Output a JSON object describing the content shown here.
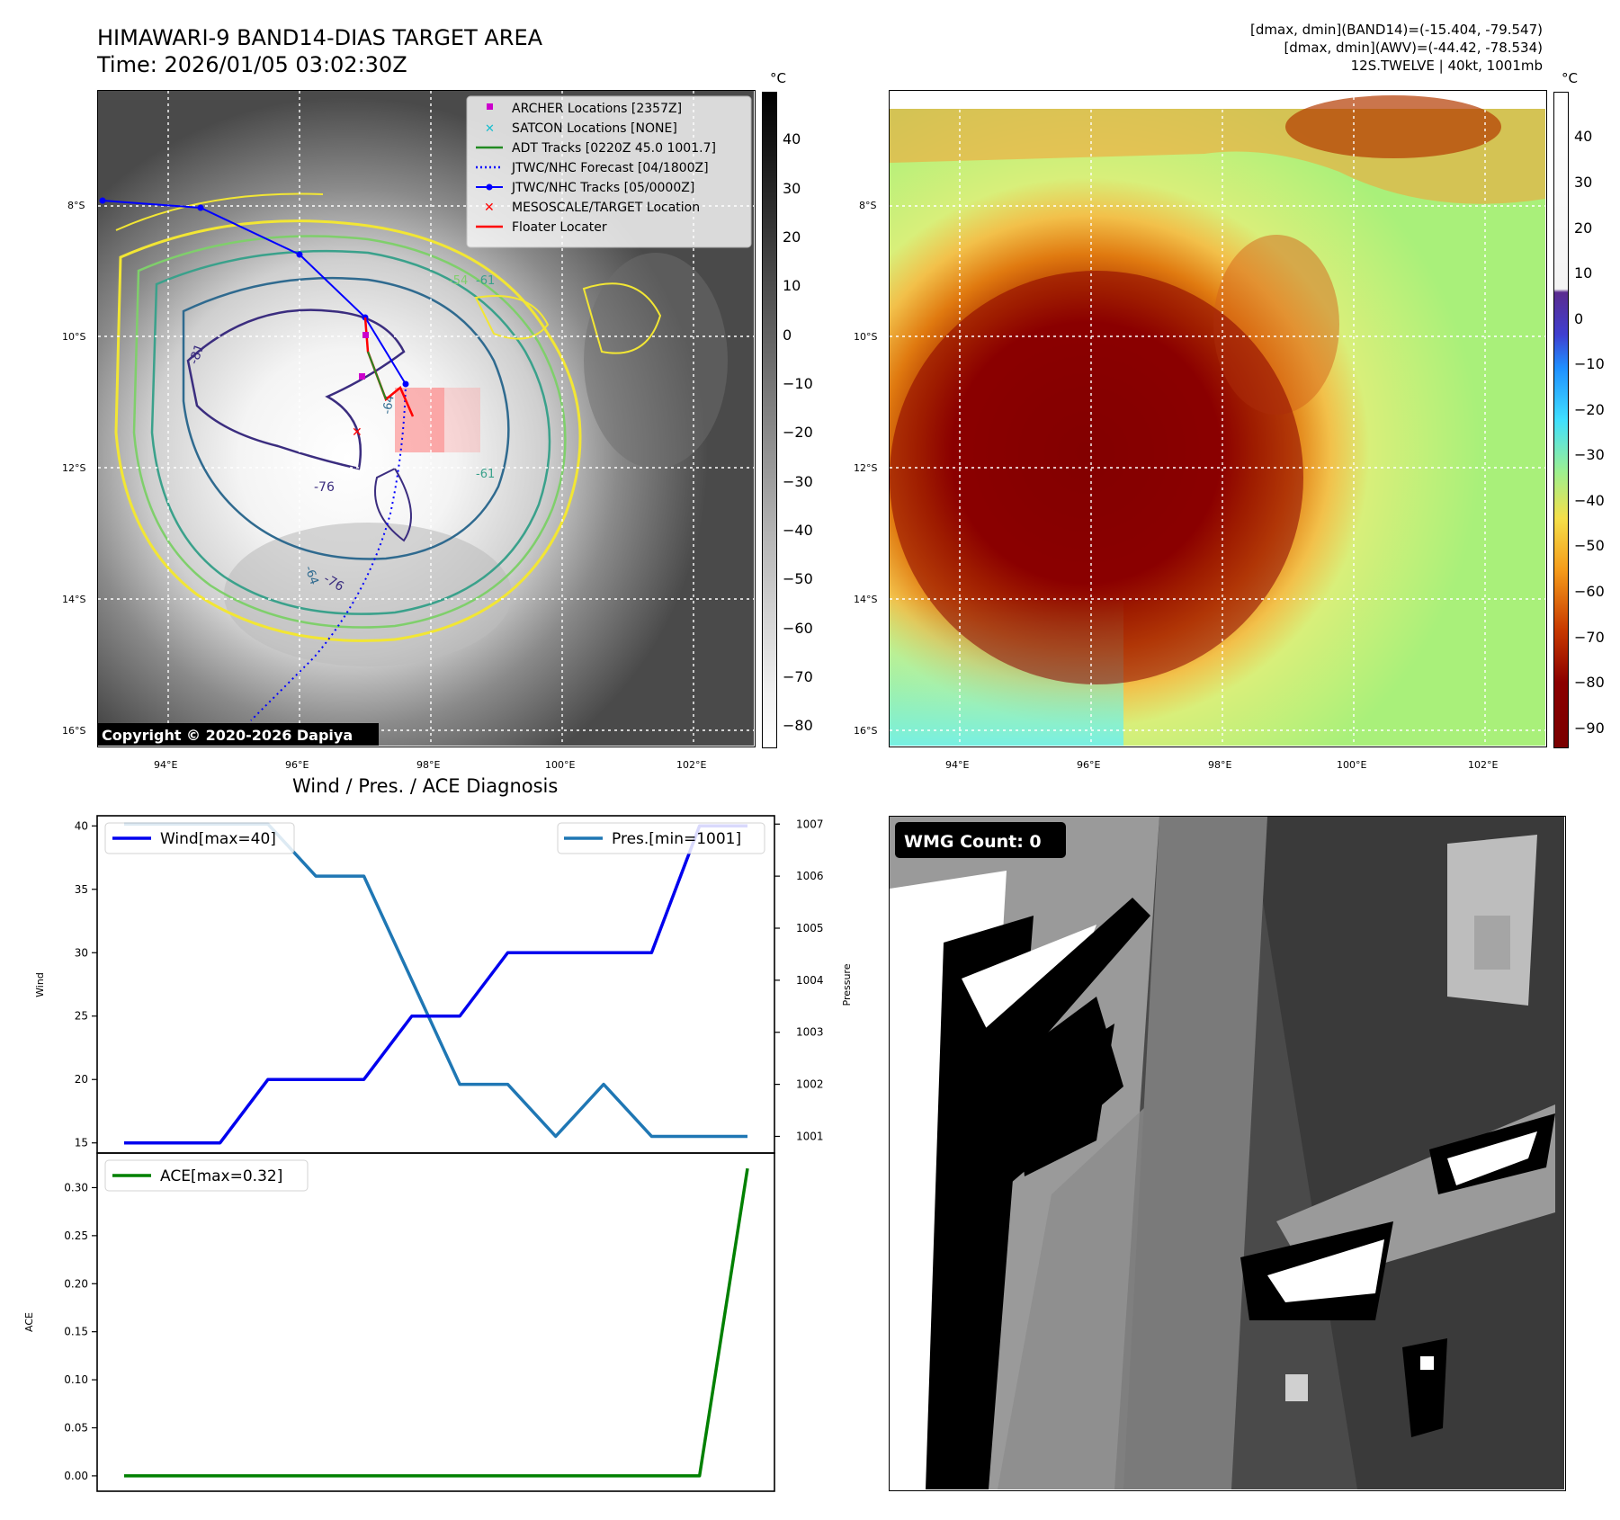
{
  "header": {
    "title_line1": "HIMAWARI-9 BAND14-DIAS TARGET AREA",
    "title_line2": "Time: 2026/01/05 03:02:30Z",
    "info_line1": "[dmax, dmin](BAND14)=(-15.404, -79.547)",
    "info_line2": "[dmax, dmin](AWV)=(-44.42, -78.534)",
    "info_line3": "12S.TWELVE | 40kt, 1001mb"
  },
  "map_axes": {
    "lat_labels": [
      "8°S",
      "10°S",
      "12°S",
      "14°S",
      "16°S"
    ],
    "lon_labels": [
      "94°E",
      "96°E",
      "98°E",
      "100°E",
      "102°E"
    ]
  },
  "colors": {
    "wind": "#0000ee",
    "pressure": "#1f77b4",
    "ace": "#008000",
    "archer": "#cc00cc",
    "satcon": "#17becf",
    "adt": "#228b22",
    "jtwc": "#0000ff",
    "target": "#ff0000"
  },
  "band14_panel": {
    "unit": "°C",
    "colorbar_ticks": [
      "40",
      "30",
      "20",
      "10",
      "0",
      "−10",
      "−20",
      "−30",
      "−40",
      "−50",
      "−60",
      "−70",
      "−80"
    ],
    "contour_labels": [
      "-81",
      "-76",
      "-76",
      "-64",
      "-61",
      "-54",
      "-64",
      "-61"
    ],
    "legend": [
      {
        "label": "ARCHER Locations [2357Z]"
      },
      {
        "label": "SATCON Locations [NONE]"
      },
      {
        "label": "ADT Tracks [0220Z 45.0 1001.7]"
      },
      {
        "label": "JTWC/NHC Forecast [04/1800Z]"
      },
      {
        "label": "JTWC/NHC Tracks [05/0000Z]"
      },
      {
        "label": "MESOSCALE/TARGET Location"
      },
      {
        "label": "Floater Locater"
      }
    ],
    "copyright": "Copyright © 2020-2026 Dapiya"
  },
  "awv_panel": {
    "unit": "°C",
    "colorbar_ticks": [
      "40",
      "30",
      "20",
      "10",
      "0",
      "−10",
      "−20",
      "−30",
      "−40",
      "−50",
      "−60",
      "−70",
      "−80",
      "−90"
    ]
  },
  "wmg_panel": {
    "label": "WMG Count: 0"
  },
  "chart_data": [
    {
      "type": "line",
      "title": "Wind / Pres. / ACE Diagnosis",
      "x": [
        0,
        1,
        2,
        3,
        4,
        5,
        6,
        7,
        8,
        9,
        10,
        11,
        12,
        13
      ],
      "y_left": {
        "label": "Wind",
        "ylim": [
          14.2,
          40.8
        ],
        "ticks": [
          "40",
          "35",
          "30",
          "25",
          "20",
          "15"
        ],
        "tick_values": [
          40,
          35,
          30,
          25,
          20,
          15
        ]
      },
      "y_right": {
        "label": "Pressure",
        "ylim": [
          1000.68,
          1007.16
        ],
        "ticks": [
          "1007",
          "1006",
          "1005",
          "1004",
          "1003",
          "1002",
          "1001"
        ],
        "tick_values": [
          1007,
          1006,
          1005,
          1004,
          1003,
          1002,
          1001
        ]
      },
      "series": [
        {
          "name": "Wind[max=40]",
          "axis": "left",
          "values": [
            15,
            15,
            15,
            20,
            20,
            20,
            25,
            25,
            30,
            30,
            30,
            30,
            40,
            40
          ]
        },
        {
          "name": "Pres.[min=1001]",
          "axis": "right",
          "values": [
            1007,
            1007,
            1007,
            1007,
            1006,
            1006,
            1004,
            1002,
            1002,
            1001,
            1002,
            1001,
            1001,
            1001
          ]
        }
      ]
    },
    {
      "type": "line",
      "x": [
        0,
        1,
        2,
        3,
        4,
        5,
        6,
        7,
        8,
        9,
        10,
        11,
        12,
        13
      ],
      "y_left": {
        "label": "ACE",
        "ylim": [
          -0.016,
          0.336
        ],
        "ticks": [
          "0.30",
          "0.25",
          "0.20",
          "0.15",
          "0.10",
          "0.05",
          "0.00"
        ],
        "tick_values": [
          0.3,
          0.25,
          0.2,
          0.15,
          0.1,
          0.05,
          0.0
        ]
      },
      "series": [
        {
          "name": "ACE[max=0.32]",
          "axis": "left",
          "values": [
            0,
            0,
            0,
            0,
            0,
            0,
            0,
            0,
            0,
            0,
            0,
            0,
            0,
            0.32
          ]
        }
      ]
    }
  ]
}
